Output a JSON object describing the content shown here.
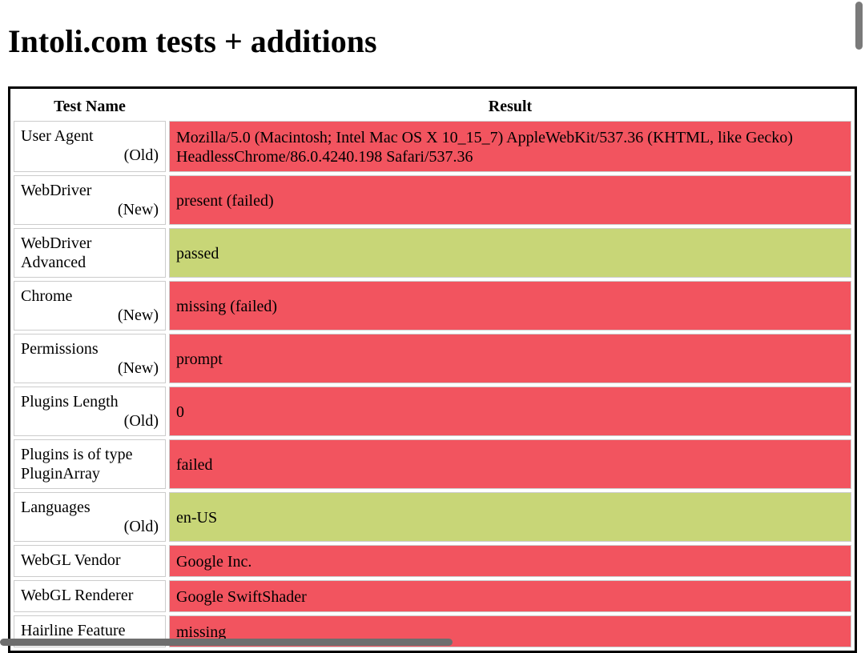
{
  "header": {
    "title": "Intoli.com tests + additions"
  },
  "table": {
    "columns": [
      "Test Name",
      "Result"
    ],
    "rows": [
      {
        "name": "User Agent",
        "tag": "(Old)",
        "result": "Mozilla/5.0 (Macintosh; Intel Mac OS X 10_15_7) AppleWebKit/537.36 (KHTML, like Gecko) HeadlessChrome/86.0.4240.198 Safari/537.36",
        "color": "#f2545f"
      },
      {
        "name": "WebDriver",
        "tag": "(New)",
        "result": "present (failed)",
        "color": "#f2545f"
      },
      {
        "name": "WebDriver Advanced",
        "result": "passed",
        "color": "#c8d677"
      },
      {
        "name": "Chrome",
        "tag": "(New)",
        "result": "missing (failed)",
        "color": "#f2545f"
      },
      {
        "name": "Permissions",
        "tag": "(New)",
        "result": "prompt",
        "color": "#f2545f"
      },
      {
        "name": "Plugins Length",
        "tag": "(Old)",
        "result": "0",
        "color": "#f2545f"
      },
      {
        "name": "Plugins is of type PluginArray",
        "result": "failed",
        "color": "#f2545f"
      },
      {
        "name": "Languages",
        "tag": "(Old)",
        "result": "en-US",
        "color": "#c8d677"
      },
      {
        "name": "WebGL Vendor",
        "result": "Google Inc.",
        "color": "#f2545f"
      },
      {
        "name": "WebGL Renderer",
        "result": "Google SwiftShader",
        "color": "#f2545f"
      },
      {
        "name": "Hairline Feature",
        "result": "missing",
        "color": "#f2545f"
      }
    ]
  }
}
